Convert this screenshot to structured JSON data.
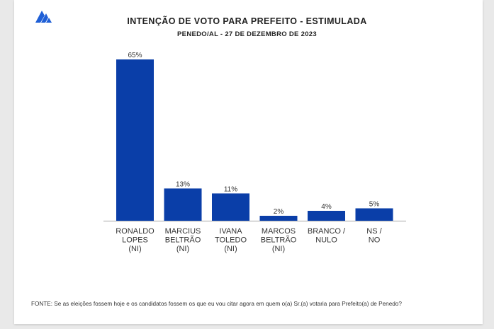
{
  "header": {
    "title": "INTENÇÃO DE VOTO PARA PREFEITO - ESTIMULADA",
    "subtitle": "PENEDO/AL - 27 DE DEZEMBRO DE 2023"
  },
  "footer": {
    "source": "FONTE: Se as eleições fossem hoje e os candidatos fossem os que eu vou citar agora em quem o(a) Sr.(a) votaria para Prefeito(a) de Penedo?"
  },
  "colors": {
    "bar": "#0a3ea8",
    "axis": "#bbbbbb",
    "logo": "#1f5fd6"
  },
  "chart_data": {
    "type": "bar",
    "title": "INTENÇÃO DE VOTO PARA PREFEITO - ESTIMULADA",
    "xlabel": "",
    "ylabel": "",
    "ylim": [
      0,
      65
    ],
    "grid": false,
    "legend": "none",
    "categories": [
      [
        "RONALDO",
        "LOPES",
        "(NI)"
      ],
      [
        "MARCIUS",
        "BELTRÃO",
        "(NI)"
      ],
      [
        "IVANA",
        "TOLEDO",
        "(NI)"
      ],
      [
        "MARCOS",
        "BELTRÃO",
        "(NI)"
      ],
      [
        "BRANCO /",
        "NULO"
      ],
      [
        "NS /",
        "NO"
      ]
    ],
    "values": [
      65,
      13,
      11,
      2,
      4,
      5
    ],
    "value_labels": [
      "65%",
      "13%",
      "11%",
      "2%",
      "4%",
      "5%"
    ]
  }
}
